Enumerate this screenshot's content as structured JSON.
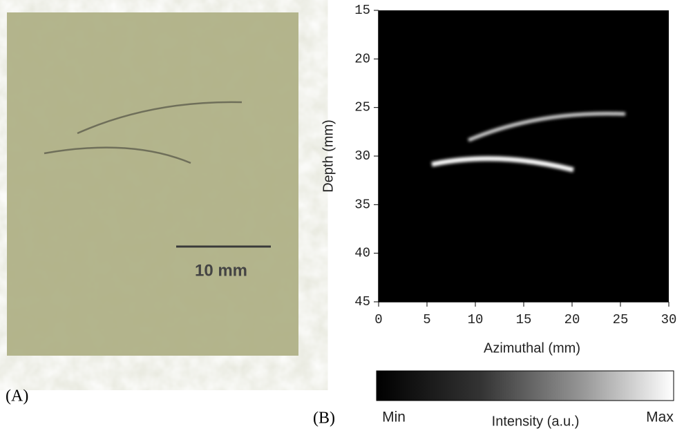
{
  "panel_a": {
    "label": "(A)",
    "scale_bar": "10 mm"
  },
  "chart_data": {
    "type": "image",
    "label": "(B)",
    "x_label": "Azimuthal (mm)",
    "y_label": "Depth (mm)",
    "xlim": [
      0,
      30
    ],
    "ylim": [
      45,
      15
    ],
    "xticks": [
      0,
      5,
      10,
      15,
      20,
      25,
      30
    ],
    "yticks": [
      15,
      20,
      25,
      30,
      35,
      40,
      45
    ],
    "colorbar": {
      "min_label": "Min",
      "max_label": "Max",
      "label": "Intensity (a.u.)"
    }
  }
}
